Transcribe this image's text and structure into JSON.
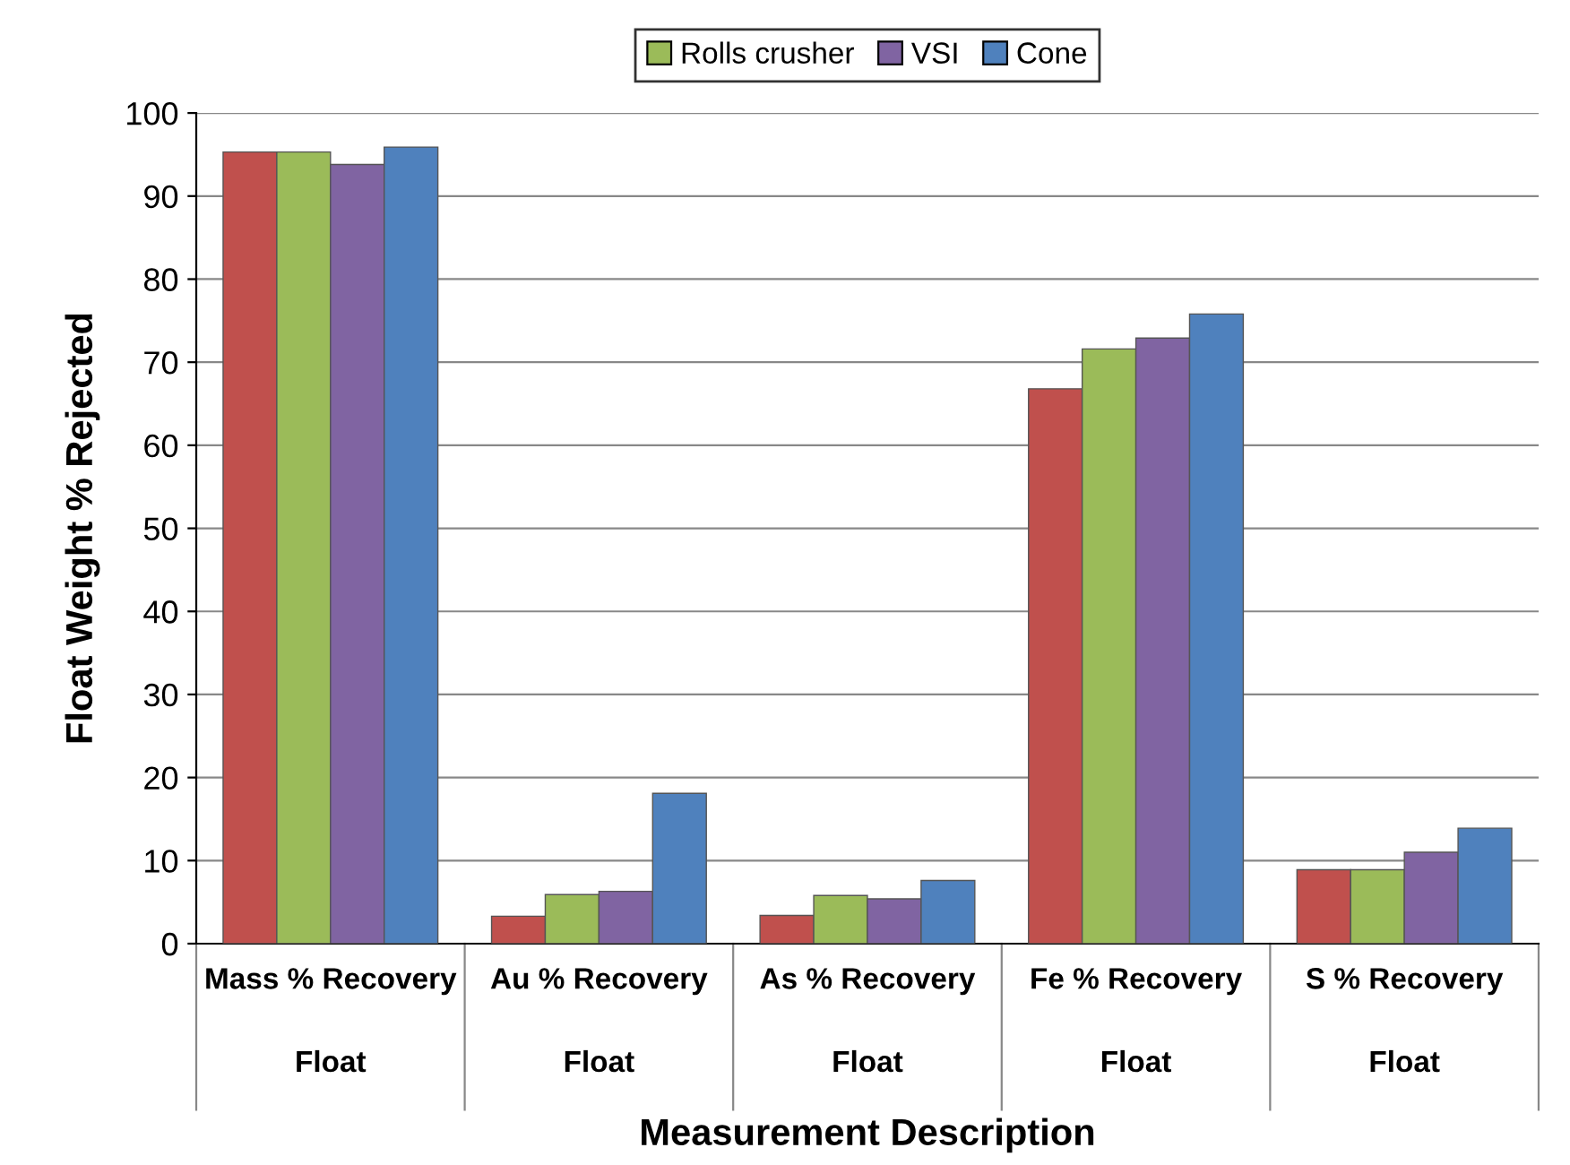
{
  "chart_data": {
    "type": "bar",
    "xlabel": "Measurement Description",
    "ylabel": "Float Weight % Rejected",
    "categories": [
      "Mass % Recovery",
      "Au % Recovery",
      "As % Recovery",
      "Fe % Recovery",
      "S % Recovery"
    ],
    "annotations": [
      "Float",
      "Float",
      "Float",
      "Float",
      "Float"
    ],
    "series": [
      {
        "color": "#c0504d",
        "values": [
          95.3,
          3.3,
          3.4,
          66.8,
          8.9
        ]
      },
      {
        "name": "Rolls crusher",
        "color": "#9bbb59",
        "values": [
          95.3,
          5.9,
          5.8,
          71.6,
          8.9
        ]
      },
      {
        "name": "VSI",
        "color": "#8064a2",
        "values": [
          93.8,
          6.3,
          5.4,
          72.9,
          11.0
        ]
      },
      {
        "name": "Cone",
        "color": "#4f81bd",
        "values": [
          95.9,
          18.1,
          7.6,
          75.8,
          13.9
        ]
      }
    ],
    "ylim": [
      0,
      100
    ],
    "yticks": [
      0,
      10,
      20,
      30,
      40,
      50,
      60,
      70,
      80,
      90,
      100
    ],
    "grid": "y",
    "legend": "top"
  }
}
